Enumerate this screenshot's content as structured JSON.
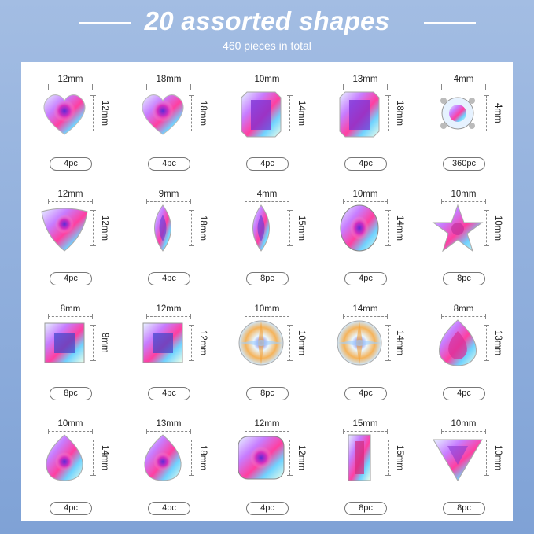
{
  "header": {
    "title": "20 assorted shapes",
    "subtitle": "460 pieces in total"
  },
  "gems": [
    {
      "shape": "heart-icon",
      "width": "12mm",
      "height": "12mm",
      "count": "4pc"
    },
    {
      "shape": "heart-icon",
      "width": "18mm",
      "height": "18mm",
      "count": "4pc"
    },
    {
      "shape": "rectangle-octagon-icon",
      "width": "10mm",
      "height": "14mm",
      "count": "4pc"
    },
    {
      "shape": "rectangle-octagon-icon",
      "width": "13mm",
      "height": "18mm",
      "count": "4pc"
    },
    {
      "shape": "round-icon",
      "width": "4mm",
      "height": "4mm",
      "count": "360pc"
    },
    {
      "shape": "trillion-icon",
      "width": "12mm",
      "height": "12mm",
      "count": "4pc"
    },
    {
      "shape": "marquise-icon",
      "width": "9mm",
      "height": "18mm",
      "count": "4pc"
    },
    {
      "shape": "marquise-icon",
      "width": "4mm",
      "height": "15mm",
      "count": "8pc"
    },
    {
      "shape": "oval-icon",
      "width": "10mm",
      "height": "14mm",
      "count": "4pc"
    },
    {
      "shape": "star-icon",
      "width": "10mm",
      "height": "10mm",
      "count": "8pc"
    },
    {
      "shape": "square-icon",
      "width": "8mm",
      "height": "8mm",
      "count": "8pc"
    },
    {
      "shape": "square-icon",
      "width": "12mm",
      "height": "12mm",
      "count": "4pc"
    },
    {
      "shape": "rivoli-icon",
      "width": "10mm",
      "height": "10mm",
      "count": "8pc"
    },
    {
      "shape": "rivoli-icon",
      "width": "14mm",
      "height": "14mm",
      "count": "4pc"
    },
    {
      "shape": "teardrop-icon",
      "width": "8mm",
      "height": "13mm",
      "count": "4pc"
    },
    {
      "shape": "pear-icon",
      "width": "10mm",
      "height": "14mm",
      "count": "4pc"
    },
    {
      "shape": "pear-icon",
      "width": "13mm",
      "height": "18mm",
      "count": "4pc"
    },
    {
      "shape": "cushion-icon",
      "width": "12mm",
      "height": "12mm",
      "count": "4pc"
    },
    {
      "shape": "baguette-icon",
      "width": "15mm",
      "height": "15mm",
      "count": "8pc"
    },
    {
      "shape": "triangle-icon",
      "width": "10mm",
      "height": "10mm",
      "count": "8pc"
    }
  ]
}
